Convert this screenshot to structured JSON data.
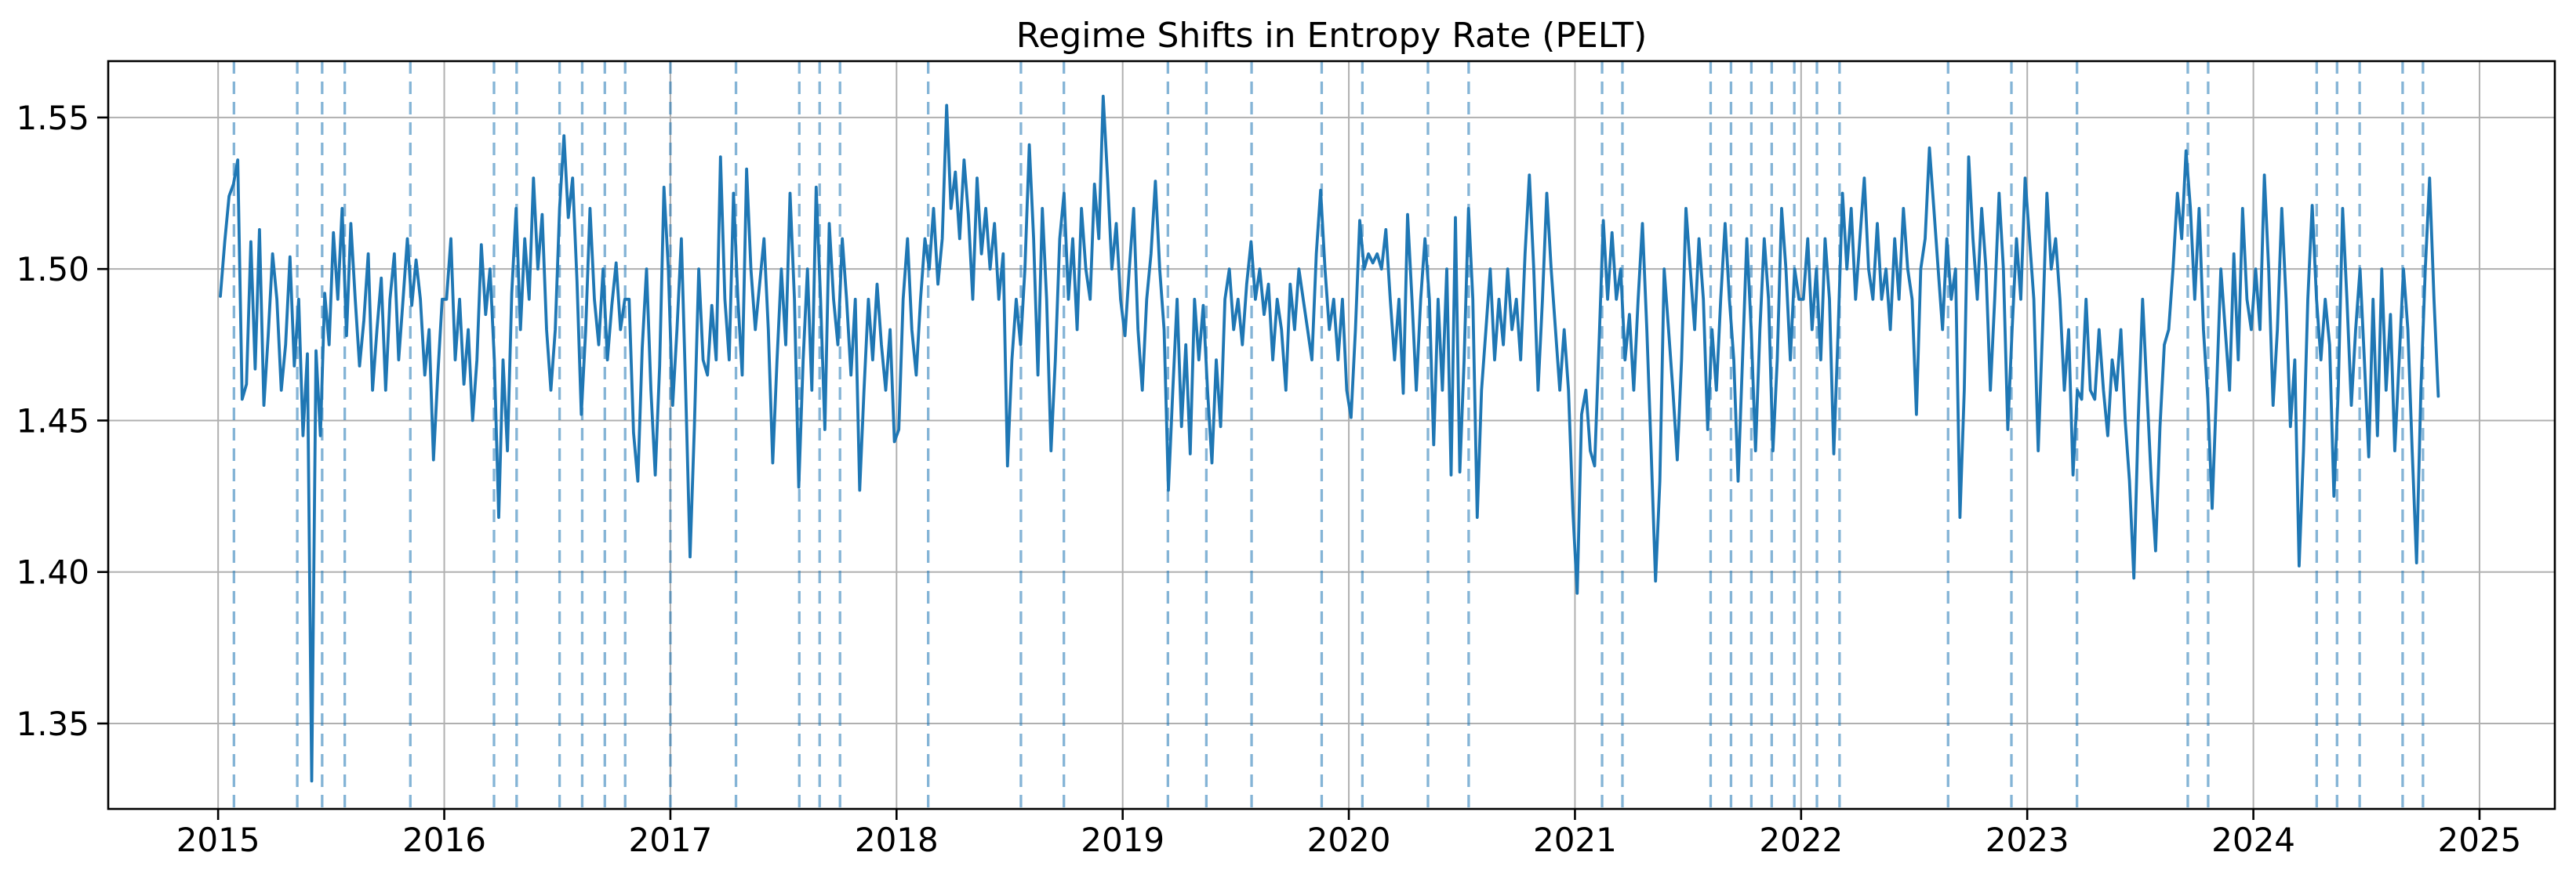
{
  "title": "Regime Shifts in Entropy Rate (PELT)",
  "chart_data": {
    "type": "line",
    "title": "Regime Shifts in Entropy Rate (PELT)",
    "xlabel": "",
    "ylabel": "",
    "legend": "none",
    "grid": true,
    "xlim": [
      2014.514,
      2025.333
    ],
    "ylim": [
      1.3218,
      1.5686
    ],
    "xticks": [
      2015,
      2016,
      2017,
      2018,
      2019,
      2020,
      2021,
      2022,
      2023,
      2024,
      2025
    ],
    "x_tick_labels": [
      "2015",
      "2016",
      "2017",
      "2018",
      "2019",
      "2020",
      "2021",
      "2022",
      "2023",
      "2024",
      "2025"
    ],
    "yticks": [
      1.35,
      1.4,
      1.45,
      1.5,
      1.55
    ],
    "y_tick_labels": [
      "1.35",
      "1.40",
      "1.45",
      "1.50",
      "1.55"
    ],
    "series": [
      {
        "name": "entropy-rate",
        "x_start": 2015.01,
        "x_step": 0.0192308,
        "values": [
          1.491,
          1.509,
          1.524,
          1.528,
          1.536,
          1.457,
          1.462,
          1.509,
          1.467,
          1.513,
          1.455,
          1.478,
          1.505,
          1.49,
          1.46,
          1.475,
          1.504,
          1.468,
          1.49,
          1.445,
          1.472,
          1.331,
          1.473,
          1.445,
          1.492,
          1.475,
          1.512,
          1.49,
          1.52,
          1.478,
          1.515,
          1.49,
          1.468,
          1.483,
          1.505,
          1.46,
          1.48,
          1.497,
          1.46,
          1.49,
          1.505,
          1.47,
          1.49,
          1.51,
          1.488,
          1.503,
          1.49,
          1.465,
          1.48,
          1.437,
          1.465,
          1.49,
          1.49,
          1.51,
          1.47,
          1.49,
          1.462,
          1.48,
          1.45,
          1.47,
          1.508,
          1.485,
          1.5,
          1.47,
          1.418,
          1.47,
          1.44,
          1.492,
          1.52,
          1.48,
          1.51,
          1.49,
          1.53,
          1.5,
          1.518,
          1.48,
          1.46,
          1.48,
          1.52,
          1.544,
          1.517,
          1.53,
          1.496,
          1.452,
          1.48,
          1.52,
          1.49,
          1.475,
          1.5,
          1.47,
          1.488,
          1.502,
          1.48,
          1.49,
          1.49,
          1.446,
          1.43,
          1.474,
          1.5,
          1.46,
          1.432,
          1.468,
          1.527,
          1.5,
          1.455,
          1.48,
          1.51,
          1.46,
          1.405,
          1.448,
          1.5,
          1.47,
          1.465,
          1.488,
          1.47,
          1.537,
          1.49,
          1.47,
          1.525,
          1.49,
          1.465,
          1.533,
          1.5,
          1.48,
          1.495,
          1.51,
          1.48,
          1.436,
          1.47,
          1.5,
          1.475,
          1.525,
          1.49,
          1.428,
          1.47,
          1.5,
          1.46,
          1.527,
          1.49,
          1.447,
          1.515,
          1.49,
          1.475,
          1.51,
          1.49,
          1.465,
          1.49,
          1.427,
          1.46,
          1.49,
          1.47,
          1.495,
          1.475,
          1.46,
          1.48,
          1.443,
          1.447,
          1.49,
          1.51,
          1.48,
          1.465,
          1.49,
          1.51,
          1.5,
          1.52,
          1.495,
          1.51,
          1.554,
          1.52,
          1.532,
          1.51,
          1.536,
          1.518,
          1.49,
          1.53,
          1.505,
          1.52,
          1.5,
          1.515,
          1.49,
          1.505,
          1.435,
          1.47,
          1.49,
          1.475,
          1.5,
          1.541,
          1.51,
          1.465,
          1.52,
          1.49,
          1.44,
          1.47,
          1.51,
          1.525,
          1.49,
          1.51,
          1.48,
          1.52,
          1.5,
          1.49,
          1.528,
          1.51,
          1.557,
          1.53,
          1.5,
          1.515,
          1.49,
          1.478,
          1.5,
          1.52,
          1.48,
          1.46,
          1.49,
          1.505,
          1.529,
          1.5,
          1.48,
          1.427,
          1.46,
          1.49,
          1.448,
          1.475,
          1.439,
          1.49,
          1.47,
          1.488,
          1.46,
          1.436,
          1.47,
          1.448,
          1.49,
          1.5,
          1.48,
          1.49,
          1.475,
          1.495,
          1.509,
          1.49,
          1.5,
          1.485,
          1.495,
          1.47,
          1.49,
          1.48,
          1.46,
          1.495,
          1.48,
          1.5,
          1.49,
          1.48,
          1.47,
          1.505,
          1.526,
          1.5,
          1.48,
          1.49,
          1.47,
          1.49,
          1.46,
          1.451,
          1.48,
          1.516,
          1.5,
          1.505,
          1.502,
          1.505,
          1.5,
          1.513,
          1.49,
          1.47,
          1.49,
          1.459,
          1.518,
          1.49,
          1.46,
          1.49,
          1.51,
          1.49,
          1.442,
          1.49,
          1.46,
          1.5,
          1.432,
          1.517,
          1.433,
          1.47,
          1.52,
          1.49,
          1.418,
          1.46,
          1.48,
          1.5,
          1.47,
          1.49,
          1.475,
          1.5,
          1.48,
          1.49,
          1.47,
          1.505,
          1.531,
          1.5,
          1.46,
          1.49,
          1.525,
          1.5,
          1.48,
          1.46,
          1.48,
          1.46,
          1.42,
          1.393,
          1.452,
          1.46,
          1.44,
          1.435,
          1.475,
          1.516,
          1.49,
          1.512,
          1.49,
          1.5,
          1.47,
          1.485,
          1.46,
          1.49,
          1.515,
          1.48,
          1.44,
          1.397,
          1.43,
          1.5,
          1.48,
          1.46,
          1.437,
          1.47,
          1.52,
          1.5,
          1.48,
          1.51,
          1.49,
          1.447,
          1.48,
          1.46,
          1.49,
          1.515,
          1.49,
          1.47,
          1.43,
          1.47,
          1.51,
          1.48,
          1.44,
          1.48,
          1.51,
          1.49,
          1.44,
          1.47,
          1.52,
          1.5,
          1.47,
          1.5,
          1.49,
          1.49,
          1.51,
          1.48,
          1.5,
          1.47,
          1.51,
          1.49,
          1.439,
          1.48,
          1.525,
          1.5,
          1.52,
          1.49,
          1.51,
          1.53,
          1.5,
          1.49,
          1.515,
          1.49,
          1.5,
          1.48,
          1.51,
          1.49,
          1.52,
          1.5,
          1.49,
          1.452,
          1.5,
          1.51,
          1.54,
          1.52,
          1.5,
          1.48,
          1.51,
          1.49,
          1.5,
          1.418,
          1.46,
          1.537,
          1.51,
          1.49,
          1.52,
          1.5,
          1.46,
          1.49,
          1.525,
          1.5,
          1.447,
          1.48,
          1.51,
          1.49,
          1.53,
          1.51,
          1.49,
          1.44,
          1.48,
          1.525,
          1.5,
          1.51,
          1.49,
          1.46,
          1.48,
          1.432,
          1.46,
          1.457,
          1.49,
          1.46,
          1.457,
          1.48,
          1.46,
          1.445,
          1.47,
          1.46,
          1.48,
          1.45,
          1.43,
          1.398,
          1.45,
          1.49,
          1.46,
          1.43,
          1.407,
          1.448,
          1.475,
          1.48,
          1.5,
          1.525,
          1.51,
          1.539,
          1.52,
          1.49,
          1.52,
          1.48,
          1.457,
          1.421,
          1.46,
          1.5,
          1.48,
          1.46,
          1.505,
          1.47,
          1.52,
          1.49,
          1.48,
          1.5,
          1.48,
          1.531,
          1.5,
          1.455,
          1.48,
          1.52,
          1.49,
          1.448,
          1.47,
          1.402,
          1.44,
          1.49,
          1.521,
          1.49,
          1.47,
          1.49,
          1.475,
          1.425,
          1.46,
          1.52,
          1.49,
          1.455,
          1.48,
          1.5,
          1.47,
          1.438,
          1.49,
          1.445,
          1.5,
          1.46,
          1.485,
          1.44,
          1.47,
          1.5,
          1.48,
          1.44,
          1.403,
          1.46,
          1.5,
          1.53,
          1.49,
          1.458
        ]
      }
    ],
    "changepoints_x": [
      2015.07,
      2015.35,
      2015.46,
      2015.56,
      2015.85,
      2016.22,
      2016.32,
      2016.51,
      2016.61,
      2016.71,
      2016.8,
      2017.0,
      2017.29,
      2017.57,
      2017.66,
      2017.75,
      2018.14,
      2018.55,
      2018.74,
      2019.2,
      2019.37,
      2019.57,
      2019.88,
      2020.06,
      2020.35,
      2020.53,
      2021.12,
      2021.21,
      2021.6,
      2021.69,
      2021.78,
      2021.87,
      2021.97,
      2022.07,
      2022.17,
      2022.65,
      2022.93,
      2023.22,
      2023.71,
      2023.8,
      2024.28,
      2024.37,
      2024.47,
      2024.66,
      2024.75
    ],
    "colors": {
      "series_line": "#1f77b4",
      "changepoint_line": "#1f77b4",
      "changepoint_opacity": 0.55,
      "gridline": "#b0b0b0",
      "spine": "#000000",
      "tick_text": "#000000",
      "background": "#ffffff"
    }
  }
}
